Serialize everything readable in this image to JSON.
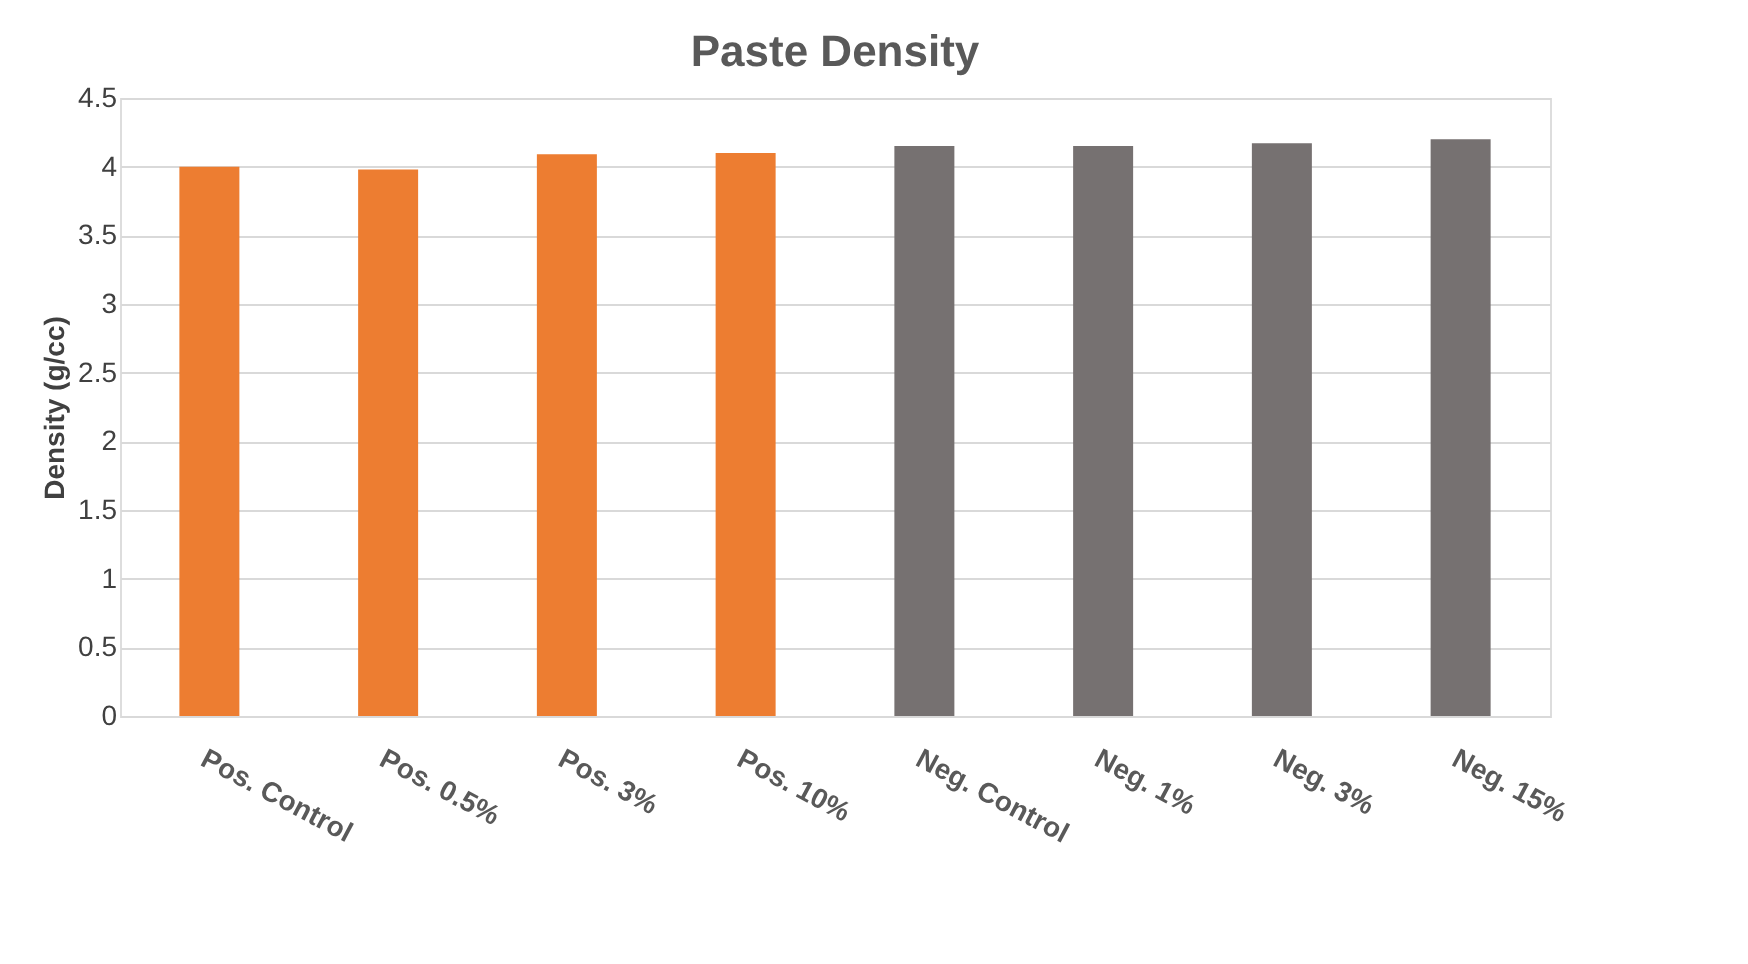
{
  "chart_data": {
    "type": "bar",
    "title": "Paste Density",
    "ylabel": "Density (g/cc)",
    "categories": [
      "Pos. Control",
      "Pos. 0.5%",
      "Pos. 3%",
      "Pos. 10%",
      "Neg. Control",
      "Neg. 1%",
      "Neg. 3%",
      "Neg. 15%"
    ],
    "values": [
      4.0,
      3.98,
      4.09,
      4.1,
      4.15,
      4.15,
      4.17,
      4.2
    ],
    "colors": [
      "#ed7d31",
      "#ed7d31",
      "#ed7d31",
      "#ed7d31",
      "#767171",
      "#767171",
      "#767171",
      "#767171"
    ],
    "ylim": [
      0,
      4.5
    ],
    "yticks": [
      0,
      0.5,
      1,
      1.5,
      2,
      2.5,
      3,
      3.5,
      4,
      4.5
    ],
    "grid": "y",
    "legend": false
  }
}
